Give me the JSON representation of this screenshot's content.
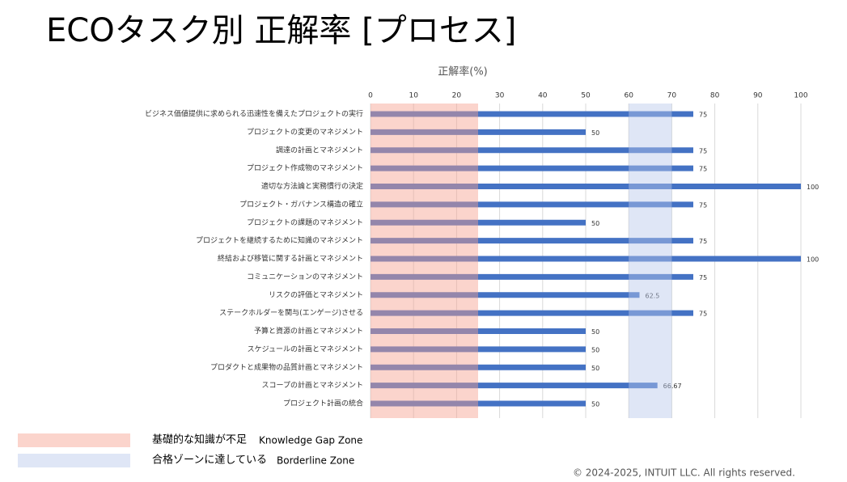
{
  "chart_data": {
    "type": "hbar",
    "title": "ECOタスク別  正解率  [プロセス]",
    "x_label": "正解率(%)",
    "categories": [
      "ビジネス価値提供に求められる迅速性を備えたプロジェクトの実行",
      "プロジェクトの変更のマネジメント",
      "調達の計画とマネジメント",
      "プロジェクト作成物のマネジメント",
      "適切な方法論と実務慣行の決定",
      "プロジェクト・ガバナンス構造の確立",
      "プロジェクトの課題のマネジメント",
      "プロジェクトを継続するために知識のマネジメント",
      "終結および移管に関する計画とマネジメント",
      "コミュニケーションのマネジメント",
      "リスクの評価とマネジメント",
      "ステークホルダーを関与(エンゲージ)させる",
      "予算と資源の計画とマネジメント",
      "スケジュールの計画とマネジメント",
      "プロダクトと成果物の品質計画とマネジメント",
      "スコープの計画とマネジメント",
      "プロジェクト計画の統合"
    ],
    "values": [
      75,
      50,
      75,
      75,
      100,
      75,
      50,
      75,
      100,
      75,
      62.5,
      75,
      50,
      50,
      50,
      66.67,
      50
    ],
    "color": "#4472c4",
    "xlim": [
      0,
      100
    ],
    "xticks": [
      0,
      10,
      20,
      30,
      40,
      50,
      60,
      70,
      80,
      90,
      100
    ],
    "grid": true,
    "zones": [
      {
        "name": "基礎的な知識が不足",
        "name_en": "Knowledge Gap Zone",
        "range": [
          0,
          25
        ],
        "color": "#f7a08e"
      },
      {
        "name": "合格ゾーンに達している",
        "name_en": "Borderline Zone",
        "range": [
          60,
          70
        ],
        "color": "#b7c7ea"
      }
    ],
    "footer": "© 2024-2025, INTUIT LLC. All rights reserved."
  }
}
